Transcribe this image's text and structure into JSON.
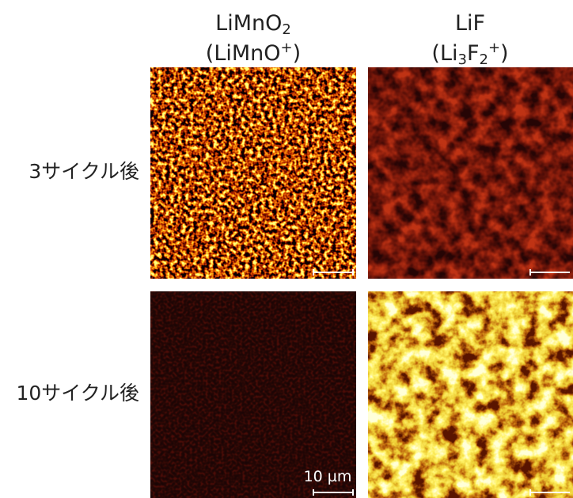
{
  "columns": [
    {
      "name": [
        {
          "text": "LiMnO"
        },
        {
          "text": "2",
          "style": "sub"
        }
      ],
      "ion": [
        {
          "text": "(LiMnO"
        },
        {
          "text": "+",
          "style": "sup"
        },
        {
          "text": ")"
        }
      ]
    },
    {
      "name": [
        {
          "text": "LiF"
        }
      ],
      "ion": [
        {
          "text": "(Li"
        },
        {
          "text": "3",
          "style": "sub"
        },
        {
          "text": "F"
        },
        {
          "text": "2",
          "style": "sub"
        },
        {
          "text": "+",
          "style": "sup"
        },
        {
          "text": ")"
        }
      ]
    }
  ],
  "rows": [
    "3サイクル後",
    "10サイクル後"
  ],
  "scale_bar": "10 µm"
}
